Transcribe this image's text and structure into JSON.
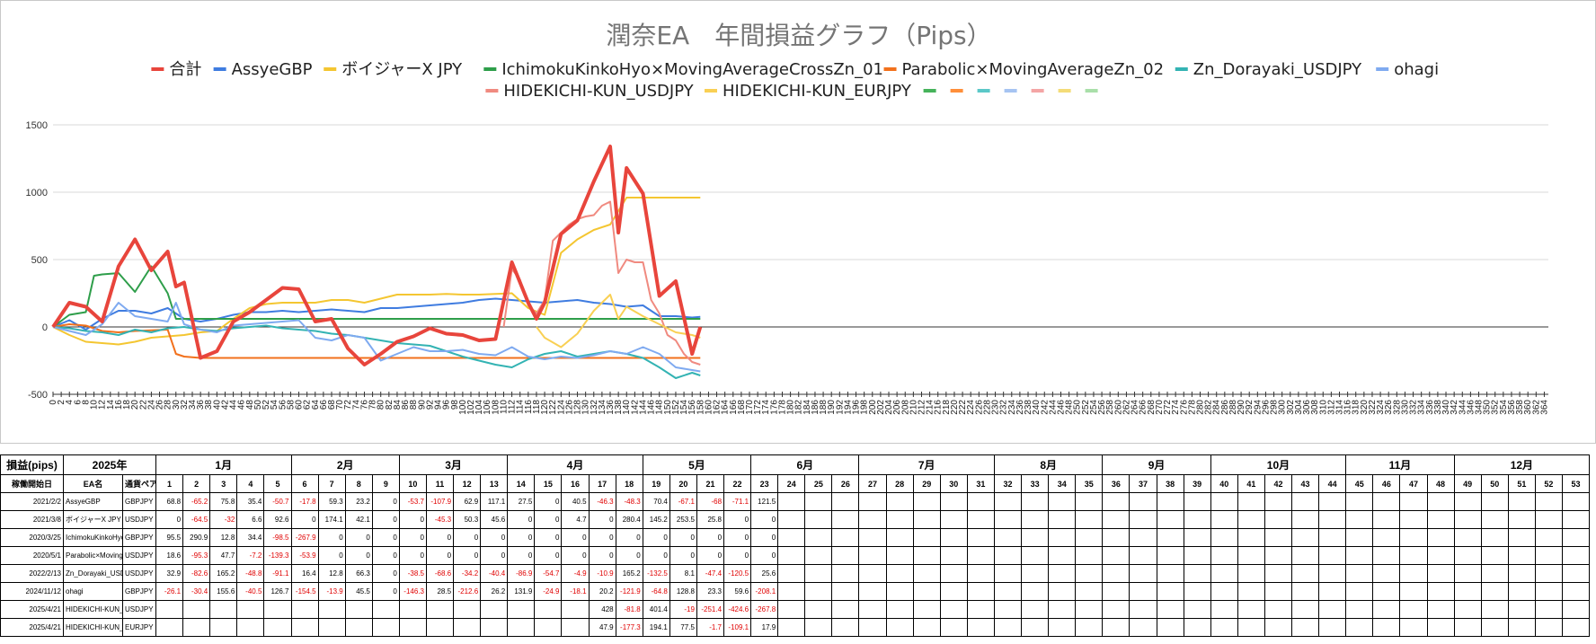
{
  "chart_data": {
    "type": "line",
    "title": "潤奈EA　年間損益グラフ（Pips）",
    "xlabel": "",
    "ylabel": "",
    "xlim": [
      0,
      365
    ],
    "ylim": [
      -500,
      1500
    ],
    "yticks": [
      -500,
      0,
      500,
      1000,
      1500
    ],
    "xtick_step": 2,
    "grid": true,
    "legend_position": "top",
    "legend_blank_colors": [
      "#46b35b",
      "#ff8f3a",
      "#5bc8c8",
      "#a6c4f2",
      "#f4a5a5",
      "#f4dc78",
      "#a9dfa9"
    ],
    "series": [
      {
        "name": "合計",
        "color": "#e8453c",
        "width": 4,
        "x": [
          0,
          4,
          8,
          12,
          16,
          20,
          24,
          28,
          30,
          32,
          36,
          40,
          44,
          48,
          52,
          56,
          60,
          64,
          68,
          72,
          76,
          80,
          84,
          88,
          92,
          96,
          100,
          104,
          108,
          112,
          116,
          118,
          120,
          124,
          128,
          132,
          136,
          138,
          140,
          144,
          148,
          152,
          156,
          158
        ],
        "y": [
          0,
          180,
          150,
          40,
          450,
          650,
          420,
          560,
          300,
          330,
          -230,
          -180,
          40,
          110,
          200,
          290,
          280,
          40,
          60,
          -160,
          -280,
          -200,
          -110,
          -70,
          -10,
          -50,
          -60,
          -100,
          -90,
          480,
          180,
          60,
          180,
          690,
          790,
          1080,
          1340,
          700,
          1180,
          990,
          230,
          340,
          -200,
          0
        ]
      },
      {
        "name": "AssyeGBP",
        "color": "#3f7ce0",
        "width": 2,
        "x": [
          0,
          4,
          8,
          12,
          16,
          20,
          24,
          28,
          32,
          36,
          40,
          44,
          48,
          52,
          56,
          60,
          64,
          68,
          72,
          76,
          80,
          84,
          88,
          92,
          96,
          100,
          104,
          108,
          112,
          116,
          120,
          124,
          128,
          132,
          136,
          140,
          144,
          148,
          152,
          156,
          158
        ],
        "y": [
          0,
          50,
          -20,
          60,
          120,
          120,
          100,
          140,
          60,
          40,
          60,
          90,
          110,
          110,
          120,
          110,
          120,
          130,
          120,
          110,
          140,
          140,
          150,
          160,
          170,
          180,
          200,
          210,
          200,
          190,
          180,
          190,
          200,
          180,
          170,
          150,
          160,
          80,
          80,
          70,
          75
        ]
      },
      {
        "name": "ボイジャーX JPY",
        "color": "#f4c631",
        "width": 2,
        "x": [
          0,
          4,
          8,
          12,
          16,
          20,
          24,
          28,
          32,
          36,
          40,
          44,
          48,
          52,
          56,
          60,
          64,
          68,
          72,
          76,
          80,
          84,
          88,
          92,
          96,
          100,
          104,
          108,
          112,
          116,
          120,
          124,
          128,
          132,
          136,
          140,
          144,
          148,
          152,
          156,
          158
        ],
        "y": [
          0,
          -60,
          -110,
          -120,
          -130,
          -110,
          -80,
          -70,
          -60,
          -40,
          -30,
          60,
          140,
          170,
          180,
          180,
          180,
          200,
          200,
          180,
          210,
          240,
          240,
          240,
          245,
          240,
          240,
          245,
          250,
          140,
          90,
          550,
          650,
          720,
          760,
          960,
          960,
          960,
          960,
          960,
          960
        ]
      },
      {
        "name": "IchimokuKinkoHyo×MovingAverageCrossZn_01",
        "color": "#2e9e4a",
        "width": 2,
        "x": [
          0,
          4,
          8,
          10,
          12,
          16,
          20,
          24,
          28,
          30,
          32,
          36,
          60,
          100,
          140,
          158
        ],
        "y": [
          0,
          90,
          110,
          380,
          390,
          400,
          260,
          450,
          250,
          60,
          60,
          60,
          60,
          60,
          60,
          60
        ]
      },
      {
        "name": "Parabolic×MovingAverageZn_02",
        "color": "#f2711c",
        "width": 2,
        "x": [
          0,
          4,
          8,
          12,
          16,
          20,
          28,
          30,
          32,
          36,
          44,
          60,
          100,
          140,
          158
        ],
        "y": [
          0,
          20,
          10,
          -30,
          -40,
          -30,
          -20,
          -200,
          -220,
          -230,
          -230,
          -230,
          -230,
          -230,
          -230
        ]
      },
      {
        "name": "Zn_Dorayaki_USDJPY",
        "color": "#33b3b3",
        "width": 2,
        "x": [
          0,
          4,
          8,
          12,
          16,
          20,
          24,
          28,
          32,
          36,
          40,
          44,
          48,
          52,
          56,
          60,
          64,
          68,
          72,
          76,
          80,
          84,
          88,
          92,
          96,
          100,
          104,
          108,
          112,
          116,
          120,
          124,
          128,
          132,
          136,
          140,
          144,
          148,
          152,
          156,
          158
        ],
        "y": [
          0,
          -10,
          -30,
          -40,
          -60,
          -20,
          -40,
          -10,
          0,
          -20,
          -30,
          -10,
          0,
          10,
          -10,
          -20,
          -30,
          -50,
          -60,
          -80,
          -100,
          -120,
          -130,
          -140,
          -180,
          -220,
          -250,
          -280,
          -300,
          -240,
          -200,
          -180,
          -220,
          -200,
          -180,
          -200,
          -230,
          -300,
          -380,
          -340,
          -360
        ]
      },
      {
        "name": "ohagi",
        "color": "#7faaf0",
        "width": 2,
        "x": [
          0,
          4,
          8,
          12,
          16,
          20,
          24,
          28,
          30,
          32,
          36,
          40,
          44,
          48,
          52,
          56,
          60,
          64,
          68,
          72,
          76,
          80,
          84,
          88,
          92,
          96,
          100,
          104,
          108,
          112,
          116,
          120,
          124,
          128,
          132,
          136,
          140,
          144,
          148,
          152,
          156,
          158
        ],
        "y": [
          0,
          -30,
          -60,
          20,
          180,
          80,
          60,
          40,
          180,
          20,
          -20,
          -40,
          10,
          20,
          30,
          40,
          50,
          -80,
          -100,
          -60,
          -80,
          -250,
          -200,
          -150,
          -180,
          -180,
          -170,
          -200,
          -210,
          -150,
          -220,
          -240,
          -220,
          -230,
          -210,
          -180,
          -200,
          -150,
          -200,
          -300,
          -320,
          -330
        ]
      },
      {
        "name": "HIDEKICHI-KUN_USDJPY",
        "color": "#f08a80",
        "width": 2,
        "x": [
          110,
          112,
          114,
          116,
          118,
          120,
          122,
          124,
          126,
          128,
          130,
          132,
          134,
          136,
          138,
          140,
          142,
          144,
          146,
          148,
          150,
          152,
          154,
          156,
          158
        ],
        "y": [
          0,
          430,
          350,
          160,
          100,
          200,
          640,
          700,
          760,
          800,
          820,
          830,
          900,
          930,
          400,
          500,
          480,
          480,
          200,
          100,
          -60,
          -100,
          -200,
          -260,
          -280
        ]
      },
      {
        "name": "HIDEKICHI-KUN_EURJPY",
        "color": "#f9d054",
        "width": 2,
        "x": [
          118,
          120,
          124,
          128,
          132,
          136,
          138,
          140,
          144,
          148,
          152,
          156,
          158
        ],
        "y": [
          0,
          -80,
          -150,
          -50,
          120,
          240,
          60,
          150,
          80,
          20,
          -40,
          -60,
          -80
        ]
      }
    ]
  },
  "table": {
    "header_row1": {
      "label": "損益(pips)",
      "year": "2025年",
      "months": [
        "1月",
        "2月",
        "3月",
        "4月",
        "5月",
        "6月",
        "7月",
        "8月",
        "9月",
        "10月",
        "11月",
        "12月"
      ]
    },
    "header_row2": {
      "start": "稼働開始日",
      "ea": "EA名",
      "pair": "通貨ペア",
      "weeks": [
        "1",
        "2",
        "3",
        "4",
        "5",
        "6",
        "7",
        "8",
        "9",
        "10",
        "11",
        "12",
        "13",
        "14",
        "15",
        "16",
        "17",
        "18",
        "19",
        "20",
        "21",
        "22",
        "23",
        "24",
        "25",
        "26",
        "27",
        "28",
        "29",
        "30",
        "31",
        "32",
        "33",
        "34",
        "35",
        "36",
        "37",
        "38",
        "39",
        "40",
        "41",
        "42",
        "43",
        "44",
        "45",
        "46",
        "47",
        "48",
        "49",
        "50",
        "51",
        "52",
        "53"
      ]
    },
    "month_weeks": [
      5,
      4,
      4,
      5,
      4,
      4,
      5,
      4,
      4,
      5,
      4,
      5
    ],
    "rows": [
      {
        "date": "2021/2/2",
        "ea": "AssyeGBP",
        "pair": "GBPJPY",
        "values": [
          "68.8",
          "-65.2",
          "75.8",
          "35.4",
          "-50.7",
          "-17.8",
          "59.3",
          "23.2",
          "0",
          "-53.7",
          "-107.9",
          "62.9",
          "117.1",
          "27.5",
          "0",
          "40.5",
          "-46.3",
          "-48.3",
          "70.4",
          "-67.1",
          "-68",
          "-71.1",
          "121.5"
        ]
      },
      {
        "date": "2021/3/8",
        "ea": "ボイジャーX JPY",
        "pair": "USDJPY",
        "values": [
          "0",
          "-64.5",
          "-32",
          "6.6",
          "92.6",
          "0",
          "174.1",
          "42.1",
          "0",
          "0",
          "-45.3",
          "50.3",
          "45.6",
          "0",
          "0",
          "4.7",
          "0",
          "280.4",
          "145.2",
          "253.5",
          "25.8",
          "0",
          "0"
        ]
      },
      {
        "date": "2020/3/25",
        "ea": "IchimokuKinkoHyo",
        "pair": "GBPJPY",
        "values": [
          "95.5",
          "290.9",
          "12.8",
          "34.4",
          "-98.5",
          "-267.9",
          "0",
          "0",
          "0",
          "0",
          "0",
          "0",
          "0",
          "0",
          "0",
          "0",
          "0",
          "0",
          "0",
          "0",
          "0",
          "0",
          "0"
        ]
      },
      {
        "date": "2020/5/1",
        "ea": "Parabolic×MovingA",
        "pair": "USDJPY",
        "values": [
          "18.6",
          "-95.3",
          "47.7",
          "-7.2",
          "-139.3",
          "-53.9",
          "0",
          "0",
          "0",
          "0",
          "0",
          "0",
          "0",
          "0",
          "0",
          "0",
          "0",
          "0",
          "0",
          "0",
          "0",
          "0",
          "0"
        ]
      },
      {
        "date": "2022/2/13",
        "ea": "Zn_Dorayaki_USD",
        "pair": "USDJPY",
        "values": [
          "32.9",
          "-82.6",
          "165.2",
          "-48.8",
          "-91.1",
          "16.4",
          "12.8",
          "66.3",
          "0",
          "-38.5",
          "-68.6",
          "-34.2",
          "-40.4",
          "-86.9",
          "-54.7",
          "-4.9",
          "-10.9",
          "165.2",
          "-132.5",
          "8.1",
          "-47.4",
          "-120.5",
          "25.6"
        ]
      },
      {
        "date": "2024/11/12",
        "ea": "ohagi",
        "pair": "GBPJPY",
        "values": [
          "-26.1",
          "-30.4",
          "155.6",
          "-40.5",
          "126.7",
          "-154.5",
          "-13.9",
          "45.5",
          "0",
          "-146.3",
          "28.5",
          "-212.6",
          "26.2",
          "131.9",
          "-24.9",
          "-18.1",
          "20.2",
          "-121.9",
          "-64.8",
          "128.8",
          "23.3",
          "59.6",
          "-208.1"
        ]
      },
      {
        "date": "2025/4/21",
        "ea": "HIDEKICHI-KUN_U",
        "pair": "USDJPY",
        "values": [
          "",
          "",
          "",
          "",
          "",
          "",
          "",
          "",
          "",
          "",
          "",
          "",
          "",
          "",
          "",
          "",
          "428",
          "-81.8",
          "401.4",
          "-19",
          "-251.4",
          "-424.6",
          "-267.8"
        ]
      },
      {
        "date": "2025/4/21",
        "ea": "HIDEKICHI-KUN_E",
        "pair": "EURJPY",
        "values": [
          "",
          "",
          "",
          "",
          "",
          "",
          "",
          "",
          "",
          "",
          "",
          "",
          "",
          "",
          "",
          "",
          "47.9",
          "-177.3",
          "194.1",
          "77.5",
          "-1.7",
          "-109.1",
          "17.9"
        ]
      }
    ]
  }
}
